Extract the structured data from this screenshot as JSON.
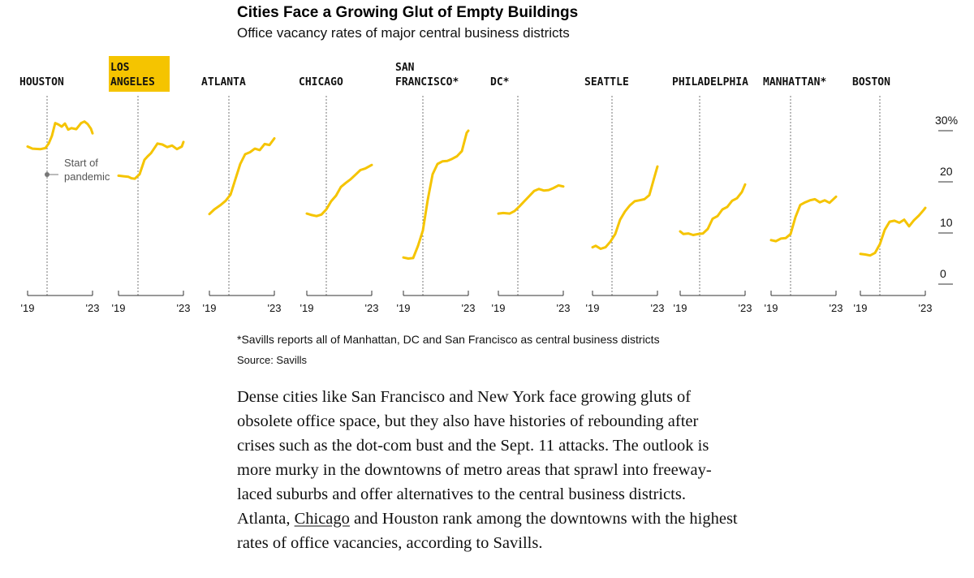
{
  "title": "Cities Face a Growing Glut of Empty Buildings",
  "subtitle": "Office vacancy rates of major central business districts",
  "annotation": {
    "line1": "Start of",
    "line2": "pandemic"
  },
  "note": "*Savills reports all of Manhattan, DC and San Francisco as central business districts",
  "source": "Source: Savills",
  "article": {
    "before": "Dense cities like San Francisco and New York face growing gluts of obsolete office space, but they also have histories of rebounding after crises such as the dot-com bust and the Sept. 11 attacks. The outlook is more murky in the downtowns of metro areas that sprawl into freeway-laced suburbs and offer alternatives to the central business districts. Atlanta, ",
    "link": "Chicago",
    "after": " and Houston rank among the downtowns with the highest rates of office vacancies, according to Savills."
  },
  "colors": {
    "line": "#f5c400",
    "highlight": "#f5c400",
    "axis": "#333333",
    "dotted": "#777777"
  },
  "chart_data": {
    "type": "line",
    "title": "Cities Face a Growing Glut of Empty Buildings",
    "subtitle": "Office vacancy rates of major central business districts",
    "x_tick_labels": [
      "'19",
      "'23"
    ],
    "x_range": [
      2019,
      2023
    ],
    "pandemic_start": 2020.2,
    "y_unit": "%",
    "ylim": [
      0,
      30
    ],
    "y_ticks": [
      0,
      10,
      20,
      30
    ],
    "y_tick_labels": [
      "0",
      "10",
      "20",
      "30%"
    ],
    "grid": false,
    "panels": [
      {
        "name": "HOUSTON",
        "label_lines": [
          "HOUSTON"
        ],
        "highlight": false,
        "x": [
          2019,
          2019.3,
          2019.8,
          2020.1,
          2020.3,
          2020.5,
          2020.7,
          2020.9,
          2021.1,
          2021.3,
          2021.5,
          2021.7,
          2022.0,
          2022.3,
          2022.5,
          2022.7,
          2022.9,
          2023
        ],
        "y": [
          26.9,
          26.5,
          26.4,
          26.6,
          27.5,
          29,
          31.5,
          31.2,
          30.8,
          31.4,
          30.2,
          30.5,
          30.3,
          31.5,
          31.8,
          31.3,
          30.4,
          29.5
        ]
      },
      {
        "name": "LOS ANGELES",
        "label_lines": [
          "LOS",
          "ANGELES"
        ],
        "highlight": true,
        "x": [
          2019,
          2019.3,
          2019.6,
          2019.8,
          2020.0,
          2020.3,
          2020.6,
          2020.8,
          2021.0,
          2021.4,
          2021.7,
          2022.0,
          2022.3,
          2022.6,
          2022.9,
          2023
        ],
        "y": [
          21.2,
          21.1,
          21.0,
          20.7,
          20.6,
          21.5,
          24.3,
          25,
          25.6,
          27.5,
          27.3,
          26.8,
          27.1,
          26.4,
          26.9,
          27.8
        ]
      },
      {
        "name": "ATLANTA",
        "label_lines": [
          "ATLANTA"
        ],
        "highlight": false,
        "x": [
          2019,
          2019.3,
          2019.7,
          2020.0,
          2020.3,
          2020.6,
          2020.9,
          2021.2,
          2021.5,
          2021.8,
          2022.1,
          2022.4,
          2022.7,
          2023
        ],
        "y": [
          13.7,
          14.6,
          15.5,
          16.3,
          17.5,
          20.5,
          23.5,
          25.4,
          25.8,
          26.5,
          26.2,
          27.4,
          27.2,
          28.5
        ]
      },
      {
        "name": "CHICAGO",
        "label_lines": [
          "CHICAGO"
        ],
        "highlight": false,
        "x": [
          2019,
          2019.3,
          2019.6,
          2019.9,
          2020.2,
          2020.5,
          2020.8,
          2021.1,
          2021.4,
          2021.7,
          2022.0,
          2022.3,
          2022.6,
          2023
        ],
        "y": [
          13.8,
          13.5,
          13.3,
          13.6,
          14.6,
          16.2,
          17.3,
          19.0,
          19.8,
          20.5,
          21.4,
          22.3,
          22.6,
          23.3
        ]
      },
      {
        "name": "SAN FRANCISCO*",
        "label_lines": [
          "SAN",
          "FRANCISCO*"
        ],
        "highlight": false,
        "x": [
          2019,
          2019.3,
          2019.6,
          2019.9,
          2020.2,
          2020.5,
          2020.8,
          2021.1,
          2021.4,
          2021.7,
          2022.0,
          2022.3,
          2022.6,
          2022.9,
          2023
        ],
        "y": [
          5.2,
          5.0,
          5.1,
          7.5,
          10.5,
          16.5,
          21.5,
          23.5,
          24.0,
          24.1,
          24.5,
          25.0,
          26.0,
          29.6,
          30.0
        ]
      },
      {
        "name": "DC*",
        "label_lines": [
          "DC*"
        ],
        "highlight": false,
        "x": [
          2019,
          2019.3,
          2019.7,
          2020.0,
          2020.3,
          2020.6,
          2020.9,
          2021.2,
          2021.5,
          2021.8,
          2022.1,
          2022.4,
          2022.7,
          2023
        ],
        "y": [
          13.8,
          13.9,
          13.8,
          14.3,
          15.2,
          16.2,
          17.2,
          18.2,
          18.6,
          18.3,
          18.4,
          18.8,
          19.3,
          19.1
        ]
      },
      {
        "name": "SEATTLE",
        "label_lines": [
          "SEATTLE"
        ],
        "highlight": false,
        "x": [
          2019,
          2019.2,
          2019.5,
          2019.8,
          2020.1,
          2020.4,
          2020.7,
          2021.0,
          2021.3,
          2021.6,
          2021.9,
          2022.2,
          2022.5,
          2022.8,
          2023
        ],
        "y": [
          7.2,
          7.5,
          6.9,
          7.2,
          8.3,
          9.8,
          12.6,
          14.2,
          15.4,
          16.2,
          16.4,
          16.6,
          17.4,
          20.8,
          23.0
        ]
      },
      {
        "name": "PHILADELPHIA",
        "label_lines": [
          "PHILADELPHIA"
        ],
        "highlight": false,
        "x": [
          2019,
          2019.2,
          2019.5,
          2019.8,
          2020.1,
          2020.4,
          2020.7,
          2021.0,
          2021.3,
          2021.6,
          2021.9,
          2022.2,
          2022.5,
          2022.8,
          2023
        ],
        "y": [
          10.3,
          9.8,
          9.9,
          9.6,
          9.8,
          9.9,
          10.8,
          12.8,
          13.3,
          14.6,
          15.1,
          16.3,
          16.8,
          18.0,
          19.5
        ]
      },
      {
        "name": "MANHATTAN*",
        "label_lines": [
          "MANHATTAN*"
        ],
        "highlight": false,
        "x": [
          2019,
          2019.3,
          2019.6,
          2019.9,
          2020.2,
          2020.5,
          2020.8,
          2021.1,
          2021.4,
          2021.7,
          2022.0,
          2022.3,
          2022.6,
          2023
        ],
        "y": [
          8.6,
          8.4,
          8.9,
          9.0,
          9.8,
          13.1,
          15.5,
          16.0,
          16.4,
          16.6,
          16.0,
          16.4,
          15.9,
          17.1
        ]
      },
      {
        "name": "BOSTON",
        "label_lines": [
          "BOSTON"
        ],
        "highlight": false,
        "x": [
          2019,
          2019.3,
          2019.6,
          2019.9,
          2020.2,
          2020.5,
          2020.8,
          2021.1,
          2021.4,
          2021.7,
          2022.0,
          2022.3,
          2022.6,
          2022.9,
          2023
        ],
        "y": [
          5.9,
          5.8,
          5.6,
          6.1,
          7.8,
          10.6,
          12.2,
          12.4,
          12.0,
          12.6,
          11.3,
          12.5,
          13.4,
          14.5,
          14.9
        ]
      }
    ]
  }
}
